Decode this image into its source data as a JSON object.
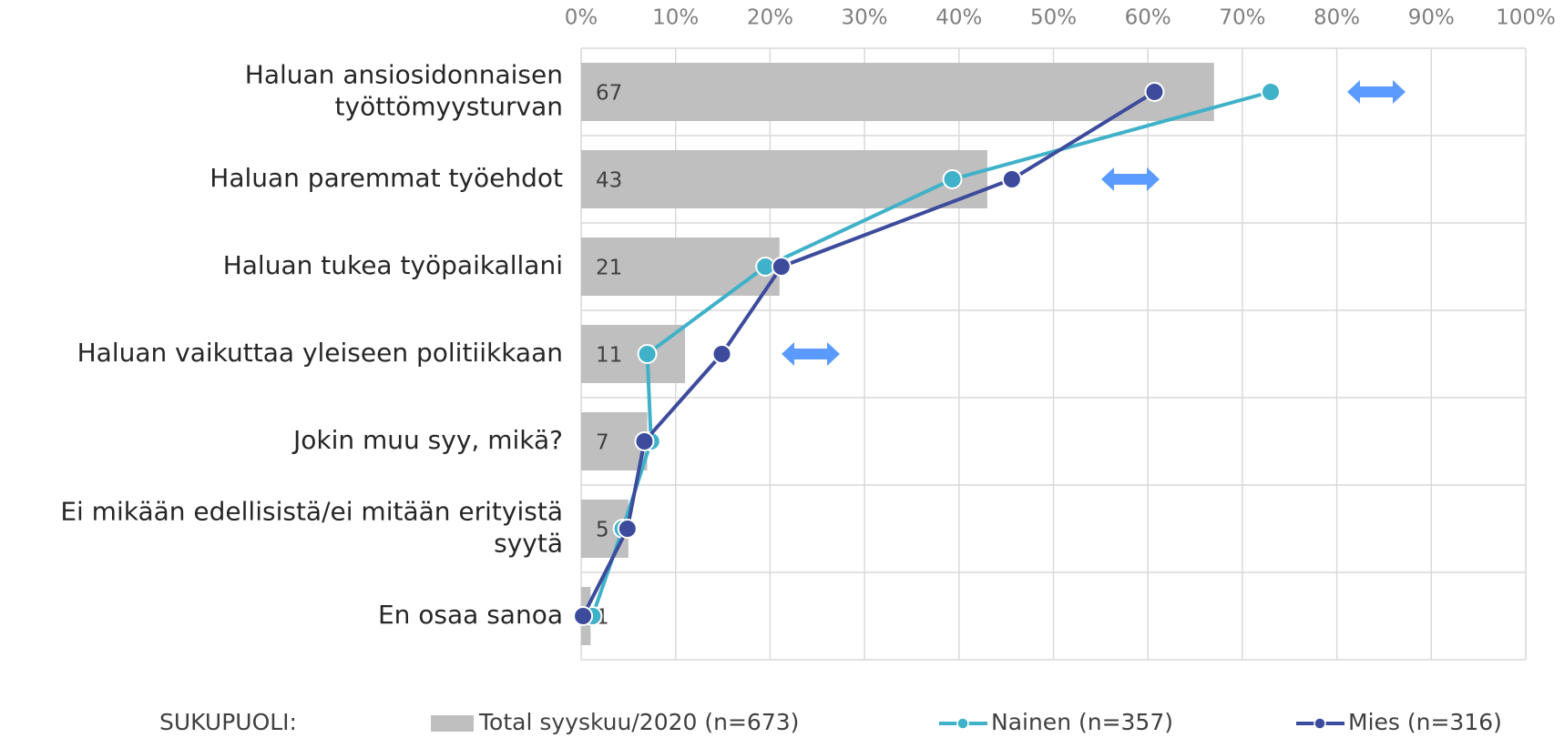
{
  "chart_data": {
    "type": "bar-line",
    "categories": [
      [
        "Haluan ansiosidonnaisen",
        "työttömyysturvan"
      ],
      [
        "Haluan paremmat työehdot"
      ],
      [
        "Haluan tukea työpaikallani"
      ],
      [
        "Haluan vaikuttaa yleiseen politiikkaan"
      ],
      [
        "Jokin muu syy, mikä?"
      ],
      [
        "Ei mikään edellisistä/ei mitään erityistä",
        "syytä"
      ],
      [
        "En osaa sanoa"
      ]
    ],
    "legend_title": "SUKUPUOLI:",
    "series": [
      {
        "name": "Total syyskuu/2020 (n=673)",
        "kind": "bar",
        "color": "#bfbfbf",
        "values": [
          67,
          43,
          21,
          11,
          7,
          5,
          1
        ]
      },
      {
        "name": "Nainen (n=357)",
        "kind": "line",
        "color": "#3fb1c8",
        "values": [
          73,
          39.3,
          19.5,
          7,
          7.4,
          4.4,
          1.2
        ]
      },
      {
        "name": "Mies (n=316)",
        "kind": "line",
        "color": "#3d4b9c",
        "values": [
          60.7,
          45.6,
          21.2,
          14.9,
          6.7,
          4.9,
          0.2
        ]
      }
    ],
    "xlim": [
      0,
      100
    ],
    "xticks": [
      {
        "value": 0,
        "label": "0%"
      },
      {
        "value": 10,
        "label": "10%"
      },
      {
        "value": 20,
        "label": "20%"
      },
      {
        "value": 30,
        "label": "30%"
      },
      {
        "value": 40,
        "label": "40%"
      },
      {
        "value": 50,
        "label": "50%"
      },
      {
        "value": 60,
        "label": "60%"
      },
      {
        "value": 70,
        "label": "70%"
      },
      {
        "value": 80,
        "label": "80%"
      },
      {
        "value": 90,
        "label": "90%"
      },
      {
        "value": 100,
        "label": "100%"
      }
    ],
    "grid": true
  }
}
